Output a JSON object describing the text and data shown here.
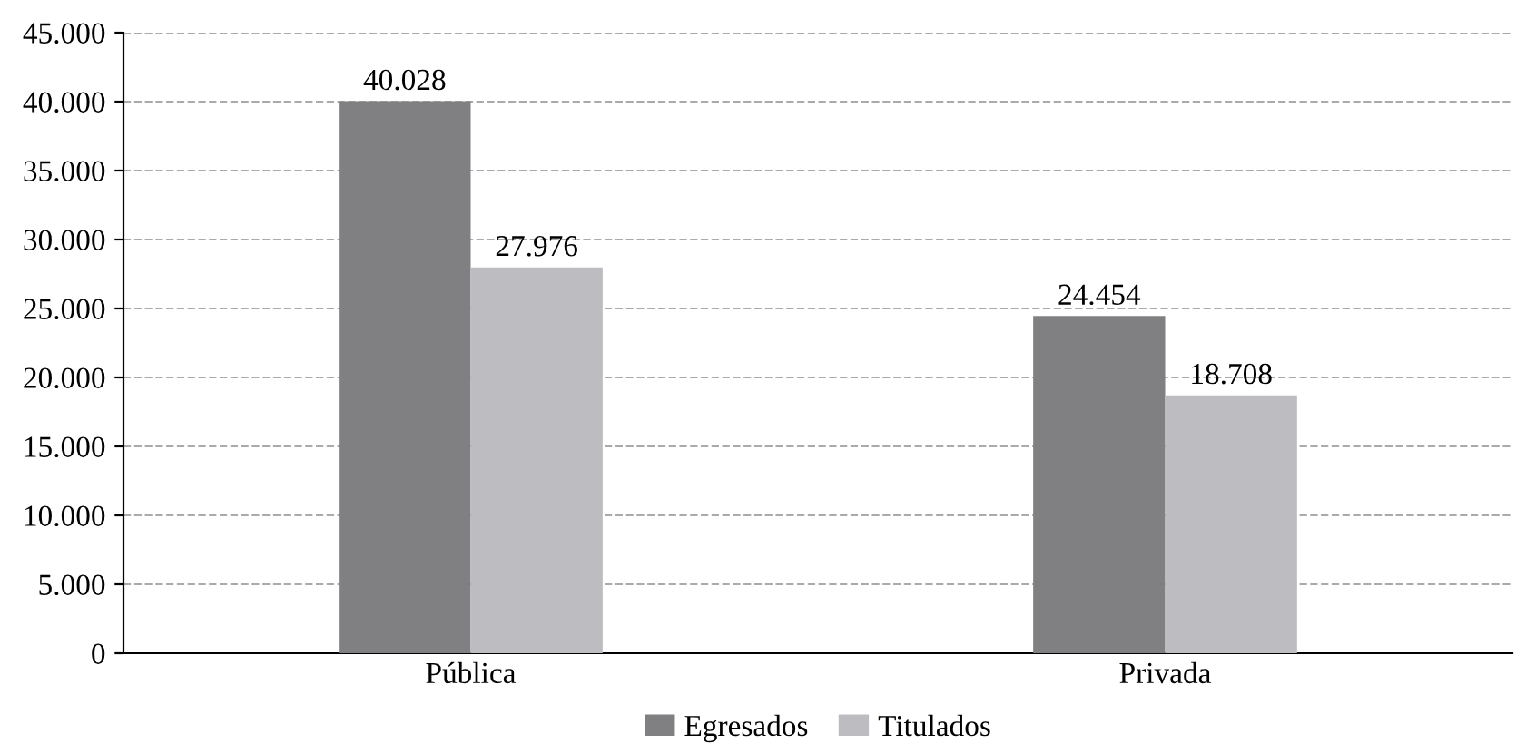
{
  "chart_data": {
    "type": "bar",
    "categories": [
      "Pública",
      "Privada"
    ],
    "series": [
      {
        "name": "Egresados",
        "color": "#808083",
        "values": [
          40028,
          24454
        ],
        "value_labels": [
          "40.028",
          "24.454"
        ]
      },
      {
        "name": "Titulados",
        "color": "#bdbdc1",
        "values": [
          27976,
          18708
        ],
        "value_labels": [
          "27.976",
          "18.708"
        ]
      }
    ],
    "ylim": [
      0,
      45000
    ],
    "yticks": [
      {
        "value": 0,
        "label": "0"
      },
      {
        "value": 5000,
        "label": "5.000"
      },
      {
        "value": 10000,
        "label": "10.000"
      },
      {
        "value": 15000,
        "label": "15.000"
      },
      {
        "value": 20000,
        "label": "20.000"
      },
      {
        "value": 25000,
        "label": "25.000"
      },
      {
        "value": 30000,
        "label": "30.000"
      },
      {
        "value": 35000,
        "label": "35.000"
      },
      {
        "value": 40000,
        "label": "40.000"
      },
      {
        "value": 45000,
        "label": "45.000"
      }
    ],
    "grid": "y",
    "legend": "bottom",
    "line_style": "dashed"
  }
}
